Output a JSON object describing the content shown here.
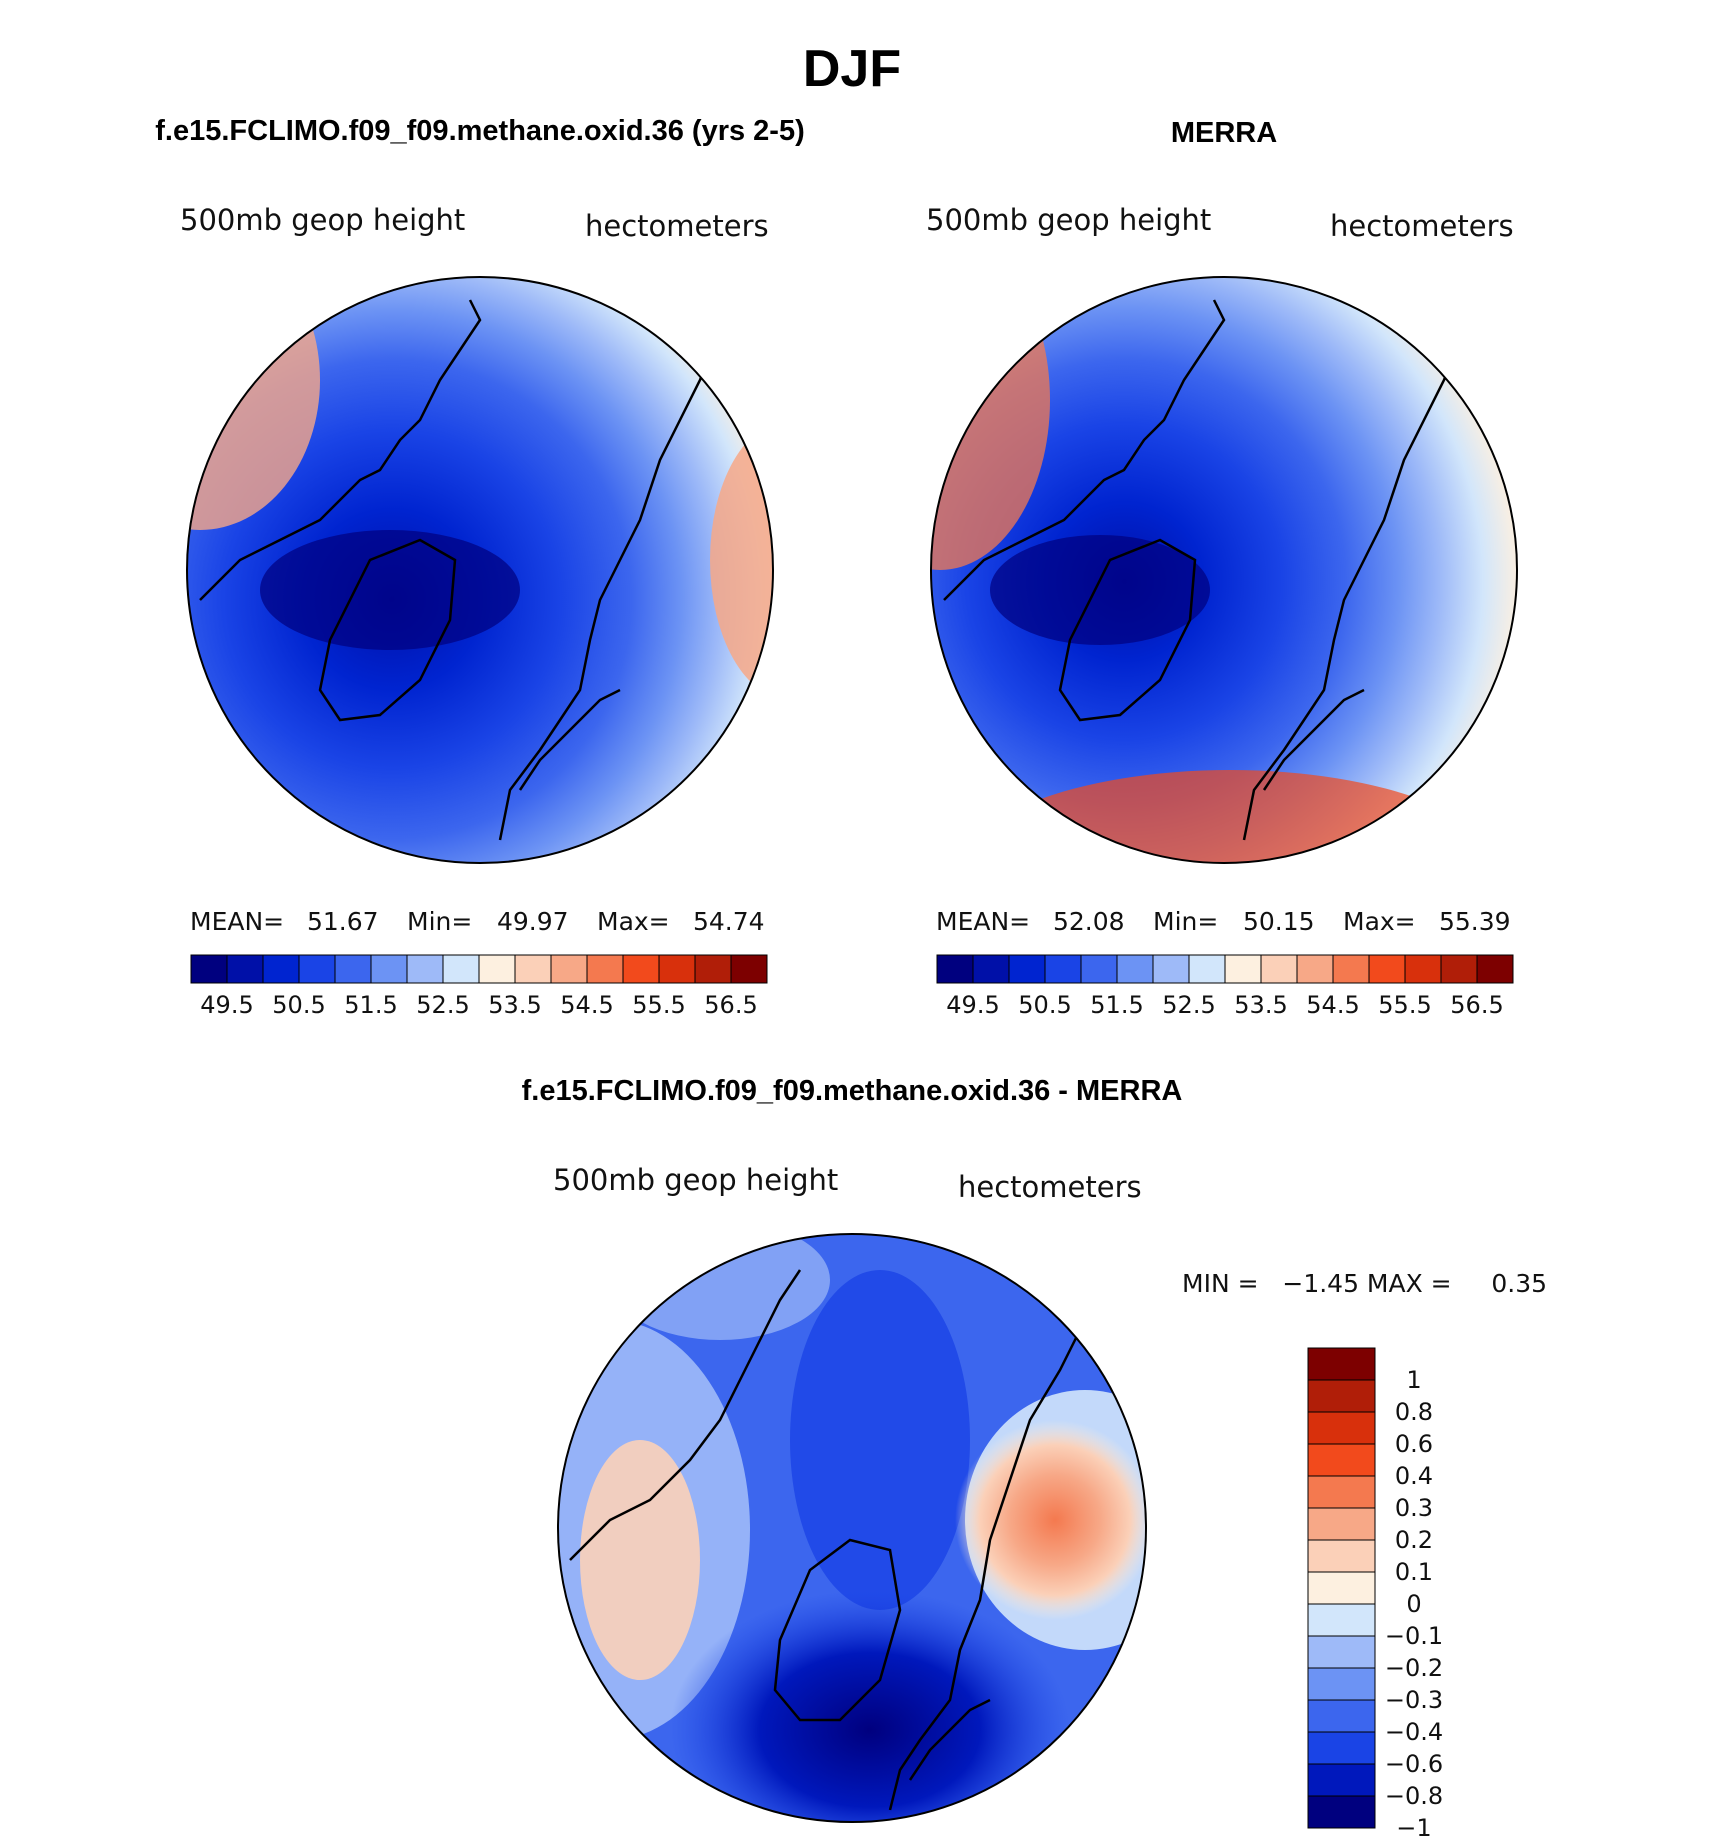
{
  "title": "DJF",
  "colors": {
    "abs_scale": [
      "#00007f",
      "#0010a8",
      "#0024d0",
      "#1a44e6",
      "#3c66ee",
      "#6c93f4",
      "#9ebaf8",
      "#d2e6fb",
      "#fdf0e0",
      "#fbd0b8",
      "#f7a887",
      "#f4794f",
      "#f24a1c",
      "#d8300c",
      "#b01e08",
      "#7d0000"
    ],
    "diff_scale": [
      "#00007f",
      "#0018bc",
      "#1a44e6",
      "#3c66ee",
      "#6c93f4",
      "#9ebaf8",
      "#d2e6fb",
      "#fdf0e0",
      "#fbd0b8",
      "#f7a887",
      "#f4794f",
      "#f24a1c",
      "#d8300c",
      "#b01e08",
      "#7d0000"
    ],
    "land_outline": "#000000"
  },
  "panels": {
    "model": {
      "heading": "f.e15.FCLIMO.f09_f09.methane.oxid.36 (yrs 2-5)",
      "left_label": "500mb  geop  height",
      "right_label": "hectometers",
      "mean_label": "MEAN=",
      "mean_value": "51.67",
      "min_label": "Min=",
      "min_value": "49.97",
      "max_label": "Max=",
      "max_value": "54.74"
    },
    "obs": {
      "heading": "MERRA",
      "left_label": "500mb  geop  height",
      "right_label": "hectometers",
      "mean_label": "MEAN=",
      "mean_value": "52.08",
      "min_label": "Min=",
      "min_value": "50.15",
      "max_label": "Max=",
      "max_value": "55.39"
    },
    "diff": {
      "heading": "f.e15.FCLIMO.f09_f09.methane.oxid.36 - MERRA",
      "left_label": "500mb  geop  height",
      "right_label": "hectometers",
      "minmax_text": "MIN =   −1.45 MAX =     0.35"
    }
  },
  "chart_data": [
    {
      "type": "heatmap",
      "projection": "north polar stereographic",
      "variable": "500mb geop height",
      "units": "hectometers",
      "mean": 51.67,
      "min": 49.97,
      "max": 54.74,
      "colorbar_ticks": [
        "49.5",
        "50.5",
        "51.5",
        "52.5",
        "53.5",
        "54.5",
        "55.5",
        "56.5"
      ],
      "contour_levels": [
        49.5,
        50,
        50.5,
        51,
        51.5,
        52,
        52.5,
        53,
        53.5,
        54,
        54.5,
        55,
        55.5,
        56,
        56.5
      ]
    },
    {
      "type": "heatmap",
      "projection": "north polar stereographic",
      "variable": "500mb geop height",
      "units": "hectometers",
      "mean": 52.08,
      "min": 50.15,
      "max": 55.39,
      "colorbar_ticks": [
        "49.5",
        "50.5",
        "51.5",
        "52.5",
        "53.5",
        "54.5",
        "55.5",
        "56.5"
      ],
      "contour_levels": [
        49.5,
        50,
        50.5,
        51,
        51.5,
        52,
        52.5,
        53,
        53.5,
        54,
        54.5,
        55,
        55.5,
        56,
        56.5
      ]
    },
    {
      "type": "heatmap",
      "projection": "north polar stereographic",
      "variable": "500mb geop height",
      "units": "hectometers",
      "min": -1.45,
      "max": 0.35,
      "colorbar_ticks": [
        "1",
        "0.8",
        "0.6",
        "0.4",
        "0.3",
        "0.2",
        "0.1",
        "0",
        "−0.1",
        "−0.2",
        "−0.3",
        "−0.4",
        "−0.6",
        "−0.8",
        "−1"
      ]
    }
  ]
}
